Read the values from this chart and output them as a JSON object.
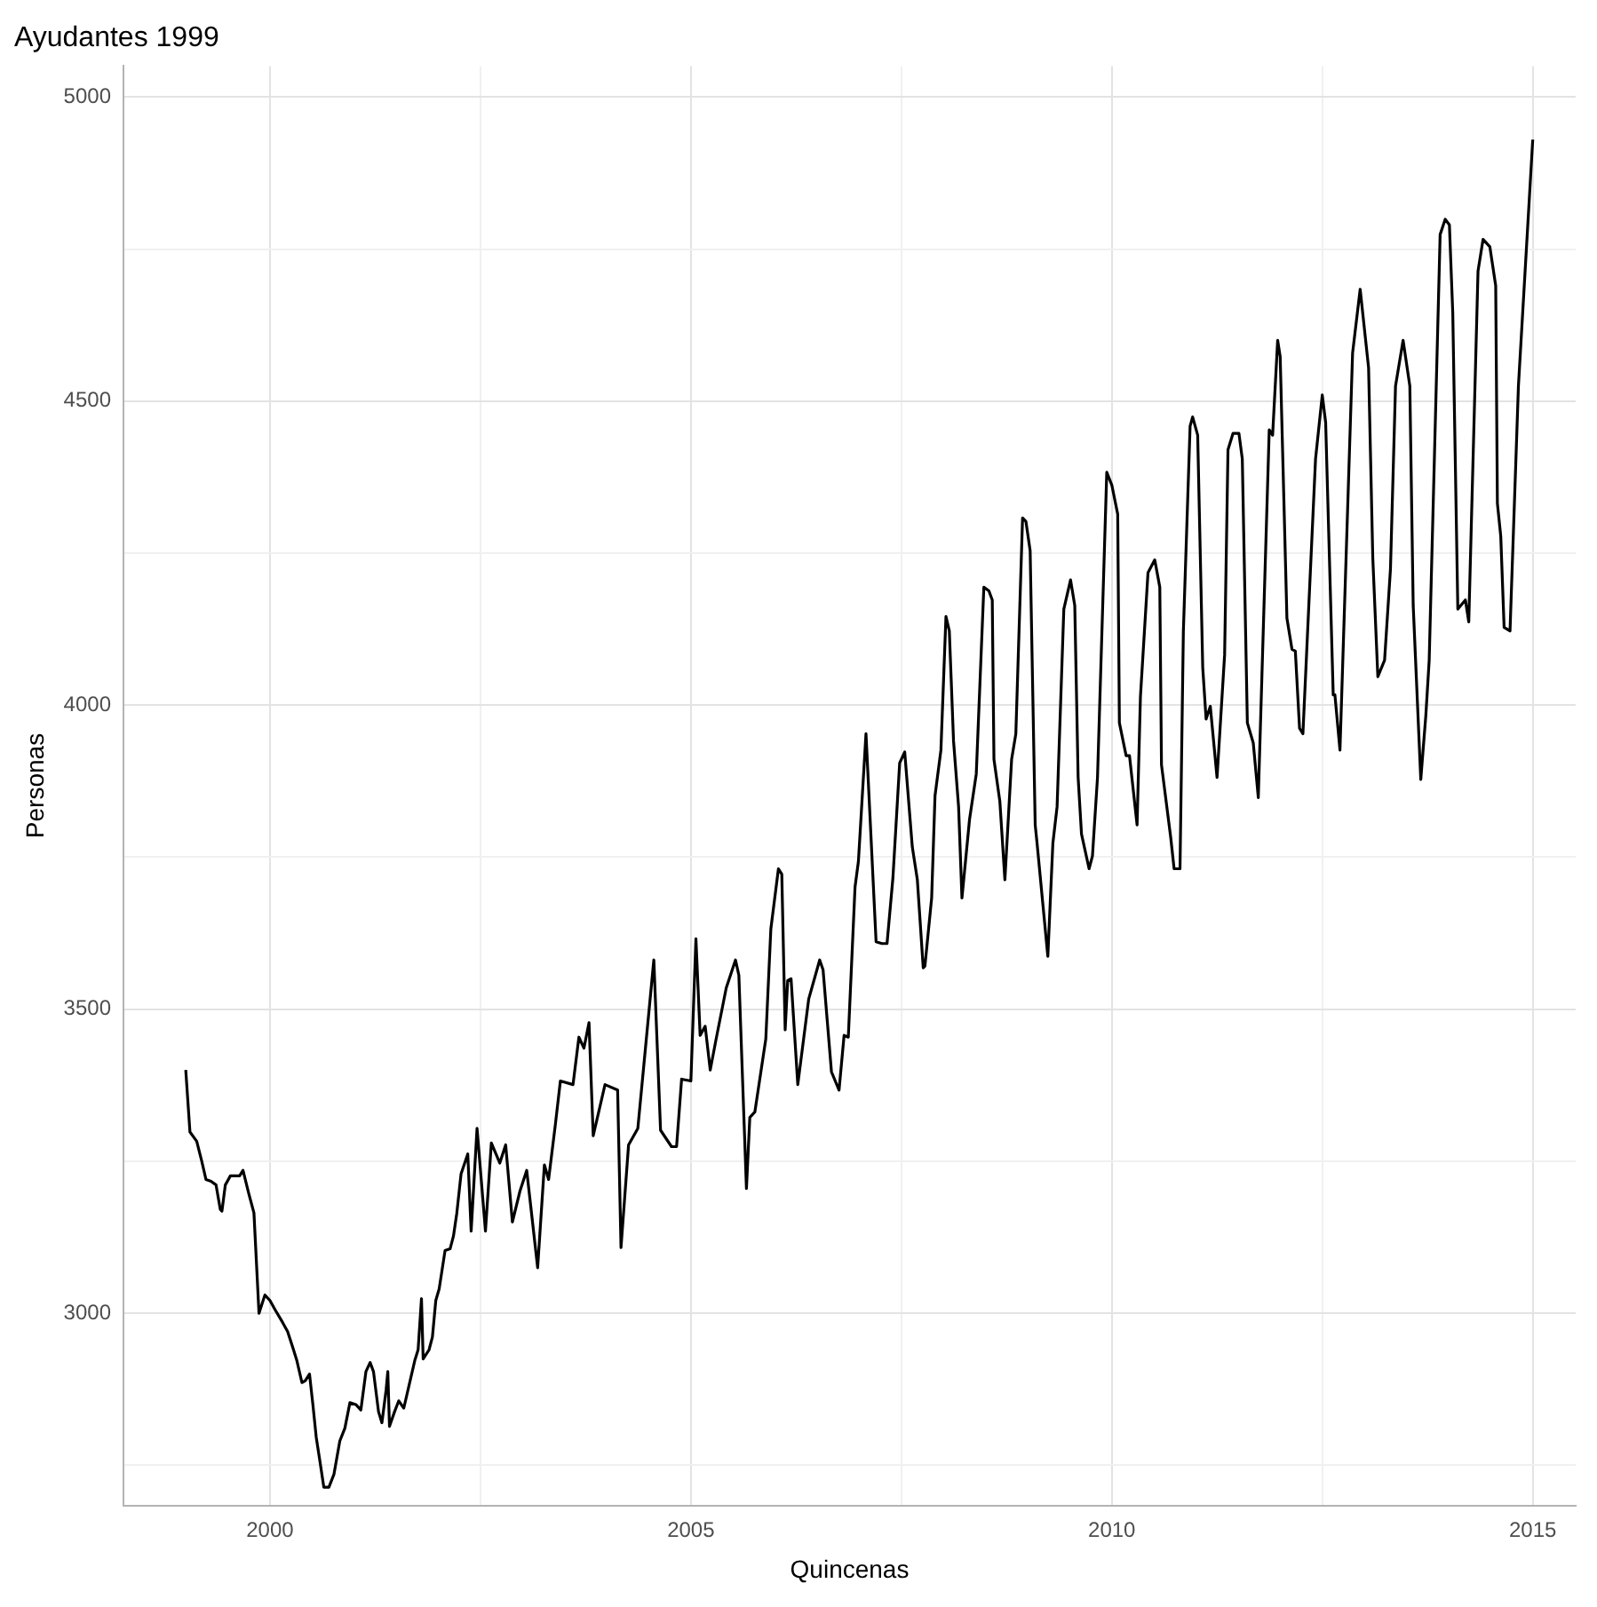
{
  "chart_data": {
    "type": "line",
    "title": "Ayudantes 1999",
    "xlabel": "Quincenas",
    "ylabel": "Personas",
    "xlim": [
      1998.26,
      2015.51
    ],
    "xticks": [
      2000,
      {
        "value": 2002.5,
        "label": null
      },
      2005,
      {
        "value": 2007.5,
        "label": null
      },
      2010,
      {
        "value": 2012.5,
        "label": null
      },
      2015
    ],
    "ylim": [
      2684,
      5051
    ],
    "yticks": [
      {
        "value": 2750,
        "label": null
      },
      3000,
      {
        "value": 3250,
        "label": null
      },
      3500,
      {
        "value": 3750,
        "label": null
      },
      4000,
      {
        "value": 4250,
        "label": null
      },
      4500,
      {
        "value": 4750,
        "label": null
      },
      5000
    ],
    "grid": true,
    "legend": false,
    "marker": "none",
    "line_style": "solid",
    "series": [
      {
        "color": "#000000",
        "x": [
          1999.0,
          1999.05,
          1999.13,
          1999.19,
          1999.24,
          1999.3,
          1999.36,
          1999.41,
          1999.43,
          1999.47,
          1999.53,
          1999.64,
          1999.68,
          1999.75,
          1999.81,
          1999.87,
          1999.94,
          2000.0,
          2000.06,
          2000.15,
          2000.21,
          2000.28,
          2000.32,
          2000.38,
          2000.42,
          2000.47,
          2000.51,
          2000.55,
          2000.59,
          2000.64,
          2000.7,
          2000.76,
          2000.83,
          2000.89,
          2000.95,
          2001.02,
          2001.08,
          2001.14,
          2001.19,
          2001.23,
          2001.29,
          2001.33,
          2001.38,
          2001.4,
          2001.42,
          2001.48,
          2001.53,
          2001.59,
          2001.65,
          2001.72,
          2001.76,
          2001.8,
          2001.82,
          2001.89,
          2001.93,
          2001.97,
          2002.01,
          2002.08,
          2002.14,
          2002.18,
          2002.22,
          2002.27,
          2002.35,
          2002.39,
          2002.46,
          2002.56,
          2002.63,
          2002.73,
          2002.8,
          2002.88,
          2002.97,
          2003.05,
          2003.18,
          2003.26,
          2003.31,
          2003.39,
          2003.45,
          2003.6,
          2003.67,
          2003.73,
          2003.79,
          2003.84,
          2003.98,
          2004.13,
          2004.17,
          2004.26,
          2004.37,
          2004.56,
          2004.64,
          2004.77,
          2004.83,
          2004.89,
          2005.0,
          2005.06,
          2005.11,
          2005.17,
          2005.23,
          2005.3,
          2005.42,
          2005.53,
          2005.57,
          2005.66,
          2005.7,
          2005.76,
          2005.89,
          2005.95,
          2006.04,
          2006.08,
          2006.12,
          2006.15,
          2006.19,
          2006.27,
          2006.4,
          2006.53,
          2006.57,
          2006.67,
          2006.76,
          2006.82,
          2006.87,
          2006.95,
          2006.99,
          2007.08,
          2007.2,
          2007.27,
          2007.33,
          2007.4,
          2007.48,
          2007.54,
          2007.63,
          2007.69,
          2007.76,
          2007.78,
          2007.86,
          2007.9,
          2007.97,
          2008.03,
          2008.07,
          2008.12,
          2008.18,
          2008.22,
          2008.31,
          2008.39,
          2008.48,
          2008.54,
          2008.58,
          2008.6,
          2008.67,
          2008.73,
          2008.81,
          2008.86,
          2008.94,
          2008.98,
          2009.03,
          2009.09,
          2009.11,
          2009.24,
          2009.3,
          2009.35,
          2009.43,
          2009.51,
          2009.56,
          2009.6,
          2009.64,
          2009.73,
          2009.77,
          2009.83,
          2009.94,
          2010.0,
          2010.07,
          2010.09,
          2010.17,
          2010.21,
          2010.3,
          2010.34,
          2010.43,
          2010.51,
          2010.57,
          2010.59,
          2010.7,
          2010.74,
          2010.81,
          2010.85,
          2010.93,
          2010.96,
          2011.02,
          2011.08,
          2011.12,
          2011.17,
          2011.25,
          2011.34,
          2011.38,
          2011.44,
          2011.51,
          2011.55,
          2011.61,
          2011.68,
          2011.74,
          2011.87,
          2011.91,
          2011.97,
          2012.0,
          2012.08,
          2012.14,
          2012.18,
          2012.23,
          2012.27,
          2012.42,
          2012.5,
          2012.54,
          2012.63,
          2012.65,
          2012.71,
          2012.86,
          2012.95,
          2013.05,
          2013.1,
          2013.16,
          2013.24,
          2013.31,
          2013.37,
          2013.46,
          2013.54,
          2013.58,
          2013.67,
          2013.73,
          2013.77,
          2013.9,
          2013.96,
          2014.01,
          2014.05,
          2014.11,
          2014.2,
          2014.24,
          2014.35,
          2014.41,
          2014.49,
          2014.56,
          2014.58,
          2014.62,
          2014.66,
          2014.73,
          2014.83,
          2015.0
        ],
        "values": [
          3400,
          3298,
          3283,
          3250,
          3220,
          3217,
          3211,
          3171,
          3168,
          3211,
          3226,
          3226,
          3235,
          3196,
          3165,
          3000,
          3030,
          3021,
          3006,
          2985,
          2970,
          2940,
          2922,
          2886,
          2889,
          2900,
          2850,
          2796,
          2760,
          2714,
          2714,
          2735,
          2790,
          2811,
          2853,
          2850,
          2841,
          2904,
          2919,
          2904,
          2838,
          2820,
          2874,
          2904,
          2814,
          2838,
          2856,
          2844,
          2880,
          2922,
          2940,
          3024,
          2925,
          2940,
          2961,
          3021,
          3040,
          3103,
          3106,
          3127,
          3165,
          3229,
          3262,
          3135,
          3304,
          3135,
          3280,
          3247,
          3277,
          3150,
          3201,
          3235,
          3075,
          3244,
          3220,
          3310,
          3382,
          3376,
          3454,
          3436,
          3478,
          3292,
          3376,
          3367,
          3108,
          3277,
          3304,
          3581,
          3301,
          3274,
          3274,
          3385,
          3382,
          3616,
          3457,
          3472,
          3400,
          3451,
          3535,
          3581,
          3556,
          3205,
          3322,
          3331,
          3451,
          3632,
          3731,
          3722,
          3466,
          3547,
          3550,
          3376,
          3517,
          3581,
          3565,
          3397,
          3367,
          3457,
          3454,
          3701,
          3743,
          3953,
          3611,
          3608,
          3608,
          3716,
          3905,
          3923,
          3767,
          3713,
          3568,
          3571,
          3683,
          3851,
          3926,
          4146,
          4122,
          3941,
          3833,
          3683,
          3812,
          3887,
          4194,
          4188,
          4173,
          3911,
          3842,
          3713,
          3911,
          3953,
          4308,
          4302,
          4254,
          3803,
          3776,
          3587,
          3773,
          3833,
          4158,
          4206,
          4164,
          3881,
          3788,
          3731,
          3752,
          3881,
          4383,
          4362,
          4314,
          3971,
          3917,
          3917,
          3803,
          4014,
          4218,
          4239,
          4194,
          3902,
          3782,
          3731,
          3731,
          4122,
          4459,
          4474,
          4444,
          4062,
          3977,
          3998,
          3881,
          4083,
          4420,
          4447,
          4447,
          4405,
          3971,
          3938,
          3848,
          4453,
          4444,
          4600,
          4573,
          4143,
          4092,
          4089,
          3962,
          3953,
          4405,
          4510,
          4465,
          4017,
          4017,
          3926,
          4579,
          4684,
          4555,
          4242,
          4047,
          4074,
          4224,
          4525,
          4600,
          4525,
          4164,
          3878,
          3983,
          4074,
          4774,
          4799,
          4790,
          4645,
          4158,
          4173,
          4137,
          4714,
          4766,
          4754,
          4690,
          4332,
          4278,
          4128,
          4122,
          4525,
          4930
        ]
      }
    ]
  }
}
